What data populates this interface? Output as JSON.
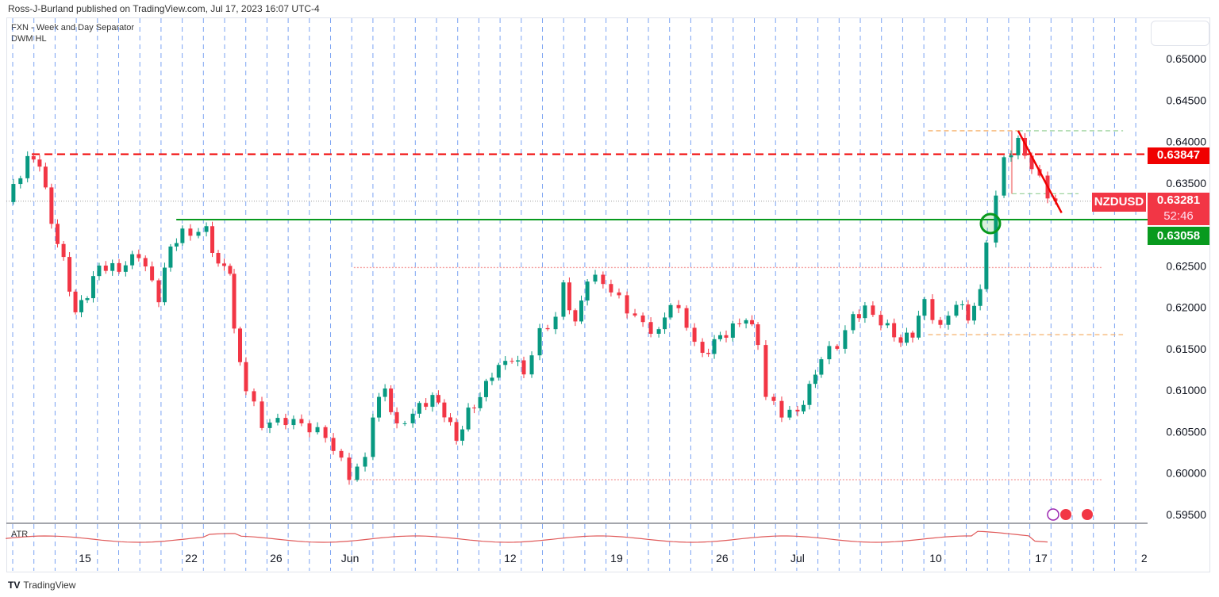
{
  "header": {
    "published": "Ross-J-Burland published on TradingView.com, Jul 17, 2023 16:07 UTC-4"
  },
  "indicators": [
    "FXN - Week and Day Separator",
    "DWM HL"
  ],
  "atr_label": "ATR",
  "footer": {
    "brand": "TradingView"
  },
  "labels": {
    "symbol": "NZDUSD",
    "price": "0.63281",
    "countdown": "52:46",
    "resistance": "0.63847",
    "support": "0.63058"
  },
  "colors": {
    "up": "#089981",
    "down": "#f23645",
    "support": "#089a1e",
    "resistance": "#f00000",
    "accent": "#2962ff"
  },
  "chart_data": {
    "type": "candlestick",
    "symbol": "NZDUSD",
    "ylim": [
      0.5935,
      0.6525
    ],
    "y_ticks": [
      "0.65000",
      "0.64500",
      "0.64000",
      "0.63500",
      "0.62500",
      "0.62000",
      "0.61500",
      "0.61000",
      "0.60500",
      "0.60000",
      "0.59500"
    ],
    "x_ticks": [
      {
        "t": 3.71,
        "label": "15"
      },
      {
        "t": 8.73,
        "label": "22"
      },
      {
        "t": 12.73,
        "label": "26"
      },
      {
        "t": 16.22,
        "label": "Jun"
      },
      {
        "t": 23.78,
        "label": "12"
      },
      {
        "t": 28.8,
        "label": "19"
      },
      {
        "t": 33.78,
        "label": "26"
      },
      {
        "t": 37.34,
        "label": "Jul"
      },
      {
        "t": 43.86,
        "label": "10"
      },
      {
        "t": 48.84,
        "label": "17"
      },
      {
        "t": 53.7,
        "label": "2"
      }
    ],
    "x_unit": "trading days from first bar",
    "close_path": [
      [
        0,
        0.6327
      ],
      [
        1,
        0.6379
      ],
      [
        1.57,
        0.6375
      ],
      [
        2.13,
        0.6303
      ],
      [
        2.7,
        0.6255
      ],
      [
        3.26,
        0.6193
      ],
      [
        3.82,
        0.6217
      ],
      [
        4.38,
        0.625
      ],
      [
        5.32,
        0.6246
      ],
      [
        6.25,
        0.6265
      ],
      [
        7.19,
        0.6212
      ],
      [
        7.75,
        0.6274
      ],
      [
        8.31,
        0.6289
      ],
      [
        9.44,
        0.6293
      ],
      [
        10,
        0.625
      ],
      [
        10.56,
        0.6246
      ],
      [
        10.75,
        0.6169
      ],
      [
        11.31,
        0.6102
      ],
      [
        12.06,
        0.6059
      ],
      [
        13.18,
        0.6064
      ],
      [
        13.93,
        0.6059
      ],
      [
        15.06,
        0.6045
      ],
      [
        16.18,
        0.5997
      ],
      [
        16.93,
        0.6016
      ],
      [
        17.3,
        0.6073
      ],
      [
        17.87,
        0.6102
      ],
      [
        18.43,
        0.6054
      ],
      [
        19.18,
        0.6073
      ],
      [
        20.11,
        0.6092
      ],
      [
        20.67,
        0.6073
      ],
      [
        21.24,
        0.604
      ],
      [
        21.8,
        0.6073
      ],
      [
        22.36,
        0.6092
      ],
      [
        22.92,
        0.6121
      ],
      [
        23.86,
        0.614
      ],
      [
        24.42,
        0.6121
      ],
      [
        25.17,
        0.6169
      ],
      [
        25.92,
        0.6188
      ],
      [
        26.29,
        0.6226
      ],
      [
        26.85,
        0.6179
      ],
      [
        27.42,
        0.6236
      ],
      [
        28.16,
        0.6231
      ],
      [
        29.29,
        0.6198
      ],
      [
        30.04,
        0.6179
      ],
      [
        30.79,
        0.6169
      ],
      [
        31.35,
        0.6207
      ],
      [
        32.1,
        0.6179
      ],
      [
        32.85,
        0.614
      ],
      [
        33.41,
        0.6159
      ],
      [
        33.97,
        0.6169
      ],
      [
        34.91,
        0.6188
      ],
      [
        35.47,
        0.6159
      ],
      [
        35.84,
        0.6092
      ],
      [
        36.59,
        0.6073
      ],
      [
        37.34,
        0.6073
      ],
      [
        37.9,
        0.6102
      ],
      [
        38.46,
        0.614
      ],
      [
        39.21,
        0.6155
      ],
      [
        39.96,
        0.6188
      ],
      [
        40.52,
        0.6198
      ],
      [
        41.27,
        0.6183
      ],
      [
        42.21,
        0.6159
      ],
      [
        42.77,
        0.6169
      ],
      [
        43.33,
        0.6207
      ],
      [
        44.08,
        0.6174
      ],
      [
        44.83,
        0.6207
      ],
      [
        45.39,
        0.6188
      ],
      [
        45.96,
        0.6217
      ],
      [
        46.25,
        0.6284
      ],
      [
        46.7,
        0.6332
      ],
      [
        47.08,
        0.6379
      ],
      [
        47.75,
        0.6399
      ],
      [
        48.39,
        0.637
      ],
      [
        49.14,
        0.6336
      ],
      [
        49.51,
        0.6328
      ]
    ],
    "levels": [
      {
        "name": "resistance",
        "price": 0.63847,
        "style": "dashed",
        "color": "#f00000"
      },
      {
        "name": "support",
        "price": 0.63058,
        "style": "solid",
        "color": "#089a1e"
      },
      {
        "name": "monthly-high",
        "price": 0.6248,
        "style": "dotted",
        "color": "#f5a0a0"
      },
      {
        "name": "monthly-low",
        "price": 0.5992,
        "style": "dotted",
        "color": "#f5a0a0"
      },
      {
        "name": "weekly-high",
        "price": 0.6413,
        "style": "dashed",
        "color": "#f6b26b"
      },
      {
        "name": "weekly-low",
        "price": 0.6167,
        "style": "dashed",
        "color": "#f6b26b"
      },
      {
        "name": "daily-low",
        "price": 0.6337,
        "style": "dashed",
        "color": "#9fd49f"
      }
    ],
    "trendline": [
      [
        47.75,
        0.6413
      ],
      [
        49.8,
        0.6314
      ]
    ],
    "last_price": 0.63281
  }
}
